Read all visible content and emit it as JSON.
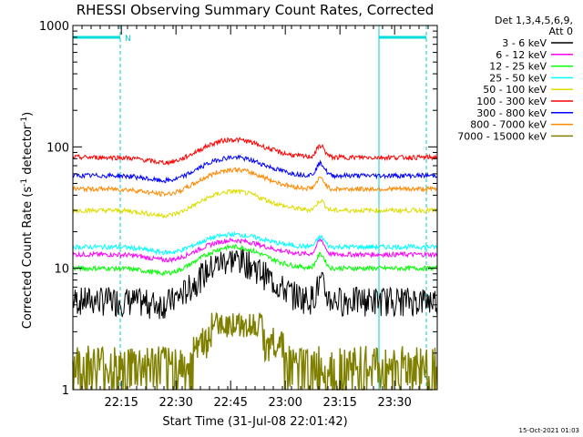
{
  "chart_data": {
    "type": "line",
    "title": "RHESSI Observing Summary Count Rates, Corrected",
    "xlabel": "Start Time (31-Jul-08 22:01:42)",
    "ylabel_main": "Corrected Count Rate (s",
    "ylabel_sup1": "-1",
    "ylabel_mid": " detector",
    "ylabel_sup2": "-1",
    "ylabel_end": ")",
    "yscale": "log",
    "ylim": [
      1,
      1000
    ],
    "y_ticks": [
      {
        "value": 1,
        "label": "1"
      },
      {
        "value": 10,
        "label": "10"
      },
      {
        "value": 100,
        "label": "100"
      },
      {
        "value": 1000,
        "label": "1000"
      }
    ],
    "xlim_min": [
      0,
      100
    ],
    "x_ticks": [
      {
        "min": 13.3,
        "label": "22:15"
      },
      {
        "min": 28.3,
        "label": "22:30"
      },
      {
        "min": 43.3,
        "label": "22:45"
      },
      {
        "min": 58.3,
        "label": "23:00"
      },
      {
        "min": 73.3,
        "label": "23:15"
      },
      {
        "min": 88.3,
        "label": "23:30"
      }
    ],
    "legend_header_1": "Det 1,3,4,5,6,9,",
    "legend_header_2": "Att 0",
    "series": [
      {
        "name": "3 - 6 keV",
        "color": "#000000",
        "base": 5.5,
        "peak": 12,
        "flare": 2
      },
      {
        "name": "6 - 12 keV",
        "color": "#ff00ff",
        "base": 13,
        "peak": 17,
        "flare": 4
      },
      {
        "name": "12 - 25 keV",
        "color": "#00ff00",
        "base": 10,
        "peak": 15,
        "flare": 3
      },
      {
        "name": "25 - 50 keV",
        "color": "#00ffff",
        "base": 15,
        "peak": 19,
        "flare": 3
      },
      {
        "name": "50 - 100 keV",
        "color": "#dddd00",
        "base": 30,
        "peak": 43,
        "flare": 6
      },
      {
        "name": "100 - 300 keV",
        "color": "#ff0000",
        "base": 82,
        "peak": 115,
        "flare": 20
      },
      {
        "name": "300 - 800 keV",
        "color": "#0000ff",
        "base": 58,
        "peak": 82,
        "flare": 15
      },
      {
        "name": "800 - 7000 keV",
        "color": "#ff8800",
        "base": 45,
        "peak": 65,
        "flare": 10
      },
      {
        "name": "7000 - 15000 keV",
        "color": "#808000",
        "base": 1.8,
        "peak": 3.5,
        "flare": 0
      }
    ],
    "night_intervals_min": [
      [
        0,
        13
      ],
      [
        84,
        97
      ]
    ],
    "saa_label": "N",
    "grid": false
  },
  "footer": {
    "timestamp": "15-Oct-2021 01:03"
  }
}
